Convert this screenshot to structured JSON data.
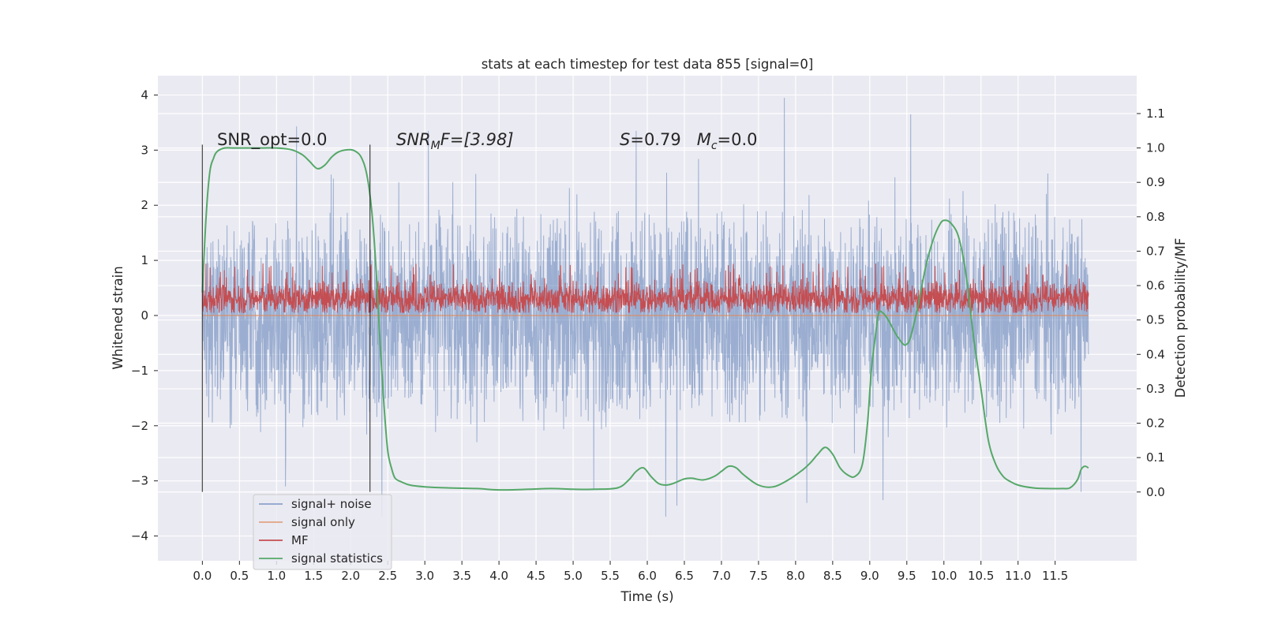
{
  "chart_data": {
    "type": "line",
    "title": "stats at each timestep for test data 855 [signal=0]",
    "xlabel": "Time (s)",
    "ylabel_left": "Whitened strain",
    "ylabel_right": "Detection probability/MF",
    "xlim": [
      -0.6,
      12.6
    ],
    "ylim_left": [
      -4.45,
      4.35
    ],
    "ylim_right": [
      -0.2,
      1.21
    ],
    "xticks": [
      0.0,
      0.5,
      1.0,
      1.5,
      2.0,
      2.5,
      3.0,
      3.5,
      4.0,
      4.5,
      5.0,
      5.5,
      6.0,
      6.5,
      7.0,
      7.5,
      8.0,
      8.5,
      9.0,
      9.5,
      10.0,
      10.5,
      11.0,
      11.5
    ],
    "xtick_labels": [
      "0.0",
      "0.5",
      "1.0",
      "1.5",
      "2.0",
      "2.5",
      "3.0",
      "3.5",
      "4.0",
      "4.5",
      "5.0",
      "5.5",
      "6.0",
      "6.5",
      "7.0",
      "7.5",
      "8.0",
      "8.5",
      "9.0",
      "9.5",
      "10.0",
      "10.5",
      "11.0",
      "11.5"
    ],
    "yticks_left": [
      -4,
      -3,
      -2,
      -1,
      0,
      1,
      2,
      3,
      4
    ],
    "ytick_labels_left": [
      "−4",
      "−3",
      "−2",
      "−1",
      "0",
      "1",
      "2",
      "3",
      "4"
    ],
    "yticks_right": [
      0.0,
      0.1,
      0.2,
      0.3,
      0.4,
      0.5,
      0.6,
      0.7,
      0.8,
      0.9,
      1.0,
      1.1
    ],
    "ytick_labels_right": [
      "0.0",
      "0.1",
      "0.2",
      "0.3",
      "0.4",
      "0.5",
      "0.6",
      "0.7",
      "0.8",
      "0.9",
      "1.0",
      "1.1"
    ],
    "grid": true,
    "legend_placement": "lower-left",
    "colors": {
      "background": "#eaeaf2",
      "grid": "#ffffff",
      "signal_noise": "#4c72b0",
      "signal_only": "#dd8452",
      "mf": "#c44e52",
      "statistics": "#55a868",
      "marker_line": "#262626"
    },
    "series": [
      {
        "name": "signal+ noise",
        "axis": "left",
        "style": "noise band",
        "x_range": [
          0.0,
          11.95
        ],
        "typical_range": [
          -1.9,
          1.9
        ],
        "peak_range": [
          -3.65,
          3.95
        ],
        "peaks": [
          {
            "x": 1.27,
            "y": 3.43
          },
          {
            "x": 3.05,
            "y": 3.35
          },
          {
            "x": 5.85,
            "y": 3.35
          },
          {
            "x": 7.85,
            "y": 3.95
          },
          {
            "x": 9.55,
            "y": 3.65
          },
          {
            "x": 2.42,
            "y": -4.1
          },
          {
            "x": 6.25,
            "y": -3.65
          },
          {
            "x": 6.4,
            "y": -3.45
          },
          {
            "x": 8.15,
            "y": -3.4
          },
          {
            "x": 9.18,
            "y": -3.35
          },
          {
            "x": 11.85,
            "y": -3.2
          },
          {
            "x": 1.12,
            "y": -3.1
          },
          {
            "x": 5.28,
            "y": -3.15
          }
        ]
      },
      {
        "name": "signal only",
        "axis": "left",
        "x": [
          0.0,
          11.95
        ],
        "y": [
          0.0,
          0.0
        ]
      },
      {
        "name": "MF",
        "axis": "left",
        "style": "noise band",
        "x_range": [
          0.0,
          11.95
        ],
        "typical_range": [
          0.05,
          0.6
        ],
        "peak_range": [
          0.0,
          1.0
        ]
      },
      {
        "name": "signal statistics",
        "axis": "right",
        "x": [
          0.0,
          0.05,
          0.1,
          0.15,
          0.2,
          0.3,
          0.4,
          0.6,
          0.8,
          1.0,
          1.2,
          1.35,
          1.45,
          1.55,
          1.65,
          1.75,
          1.85,
          2.0,
          2.1,
          2.15,
          2.2,
          2.25,
          2.3,
          2.35,
          2.4,
          2.45,
          2.5,
          2.55,
          2.6,
          2.7,
          2.8,
          3.0,
          3.3,
          3.7,
          4.0,
          4.4,
          4.7,
          5.0,
          5.3,
          5.6,
          5.75,
          5.85,
          5.95,
          6.05,
          6.15,
          6.25,
          6.35,
          6.5,
          6.6,
          6.75,
          6.9,
          7.0,
          7.1,
          7.2,
          7.3,
          7.5,
          7.7,
          7.9,
          8.1,
          8.2,
          8.3,
          8.4,
          8.5,
          8.6,
          8.7,
          8.8,
          8.9,
          8.97,
          9.02,
          9.08,
          9.12,
          9.18,
          9.25,
          9.35,
          9.45,
          9.5,
          9.55,
          9.65,
          9.75,
          9.85,
          9.95,
          10.02,
          10.1,
          10.2,
          10.3,
          10.4,
          10.5,
          10.6,
          10.7,
          10.8,
          10.9,
          11.0,
          11.2,
          11.4,
          11.6,
          11.7,
          11.8,
          11.85,
          11.9,
          11.95
        ],
        "y": [
          0.58,
          0.8,
          0.93,
          0.97,
          0.99,
          1.0,
          1.0,
          1.0,
          1.0,
          1.0,
          0.995,
          0.98,
          0.96,
          0.94,
          0.95,
          0.975,
          0.99,
          0.995,
          0.985,
          0.97,
          0.94,
          0.88,
          0.78,
          0.62,
          0.42,
          0.25,
          0.12,
          0.07,
          0.04,
          0.028,
          0.02,
          0.015,
          0.012,
          0.01,
          0.006,
          0.008,
          0.01,
          0.008,
          0.008,
          0.012,
          0.035,
          0.06,
          0.07,
          0.045,
          0.025,
          0.02,
          0.025,
          0.038,
          0.04,
          0.035,
          0.045,
          0.06,
          0.075,
          0.07,
          0.05,
          0.02,
          0.015,
          0.035,
          0.065,
          0.085,
          0.11,
          0.13,
          0.11,
          0.07,
          0.05,
          0.045,
          0.08,
          0.2,
          0.35,
          0.46,
          0.52,
          0.52,
          0.5,
          0.46,
          0.43,
          0.43,
          0.45,
          0.54,
          0.65,
          0.73,
          0.78,
          0.79,
          0.78,
          0.74,
          0.63,
          0.45,
          0.3,
          0.15,
          0.08,
          0.045,
          0.03,
          0.02,
          0.012,
          0.01,
          0.01,
          0.012,
          0.035,
          0.065,
          0.075,
          0.07
        ]
      }
    ],
    "vertical_lines": [
      0.0,
      2.26
    ],
    "annotations": {
      "snr_opt": "SNR_opt=0.0",
      "snr_mf": "SNR",
      "snr_mf_sub": "M",
      "snr_mf_rest": "F=[3.98]",
      "s_label": "S",
      "s_value": "=0.79",
      "mc_label": "M",
      "mc_sub": "c",
      "mc_value": "=0.0"
    },
    "legend": [
      "signal+ noise",
      "signal only",
      "MF",
      "signal statistics"
    ]
  }
}
